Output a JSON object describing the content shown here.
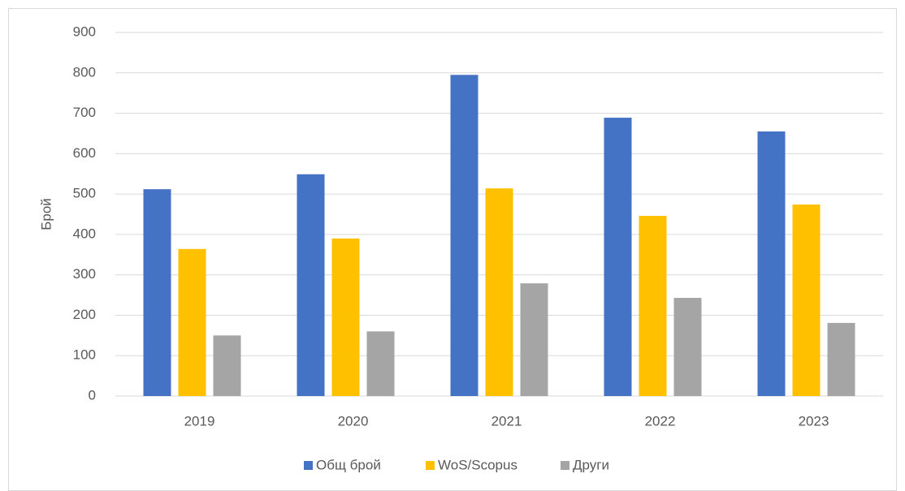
{
  "chart_data": {
    "type": "bar",
    "y_label": "Брой",
    "categories": [
      "2019",
      "2020",
      "2021",
      "2022",
      "2023"
    ],
    "series": [
      {
        "name": "Общ брой",
        "color": "#4472c4",
        "values": [
          512,
          549,
          795,
          689,
          655
        ]
      },
      {
        "name": "WoS/Scopus",
        "color": "#ffc000",
        "values": [
          364,
          390,
          514,
          446,
          474
        ]
      },
      {
        "name": "Други",
        "color": "#a5a5a5",
        "values": [
          150,
          160,
          279,
          243,
          181
        ]
      }
    ],
    "ylim": [
      0,
      900
    ],
    "yticks": [
      0,
      100,
      200,
      300,
      400,
      500,
      600,
      700,
      800,
      900
    ],
    "grid": true,
    "legend": "bottom"
  }
}
